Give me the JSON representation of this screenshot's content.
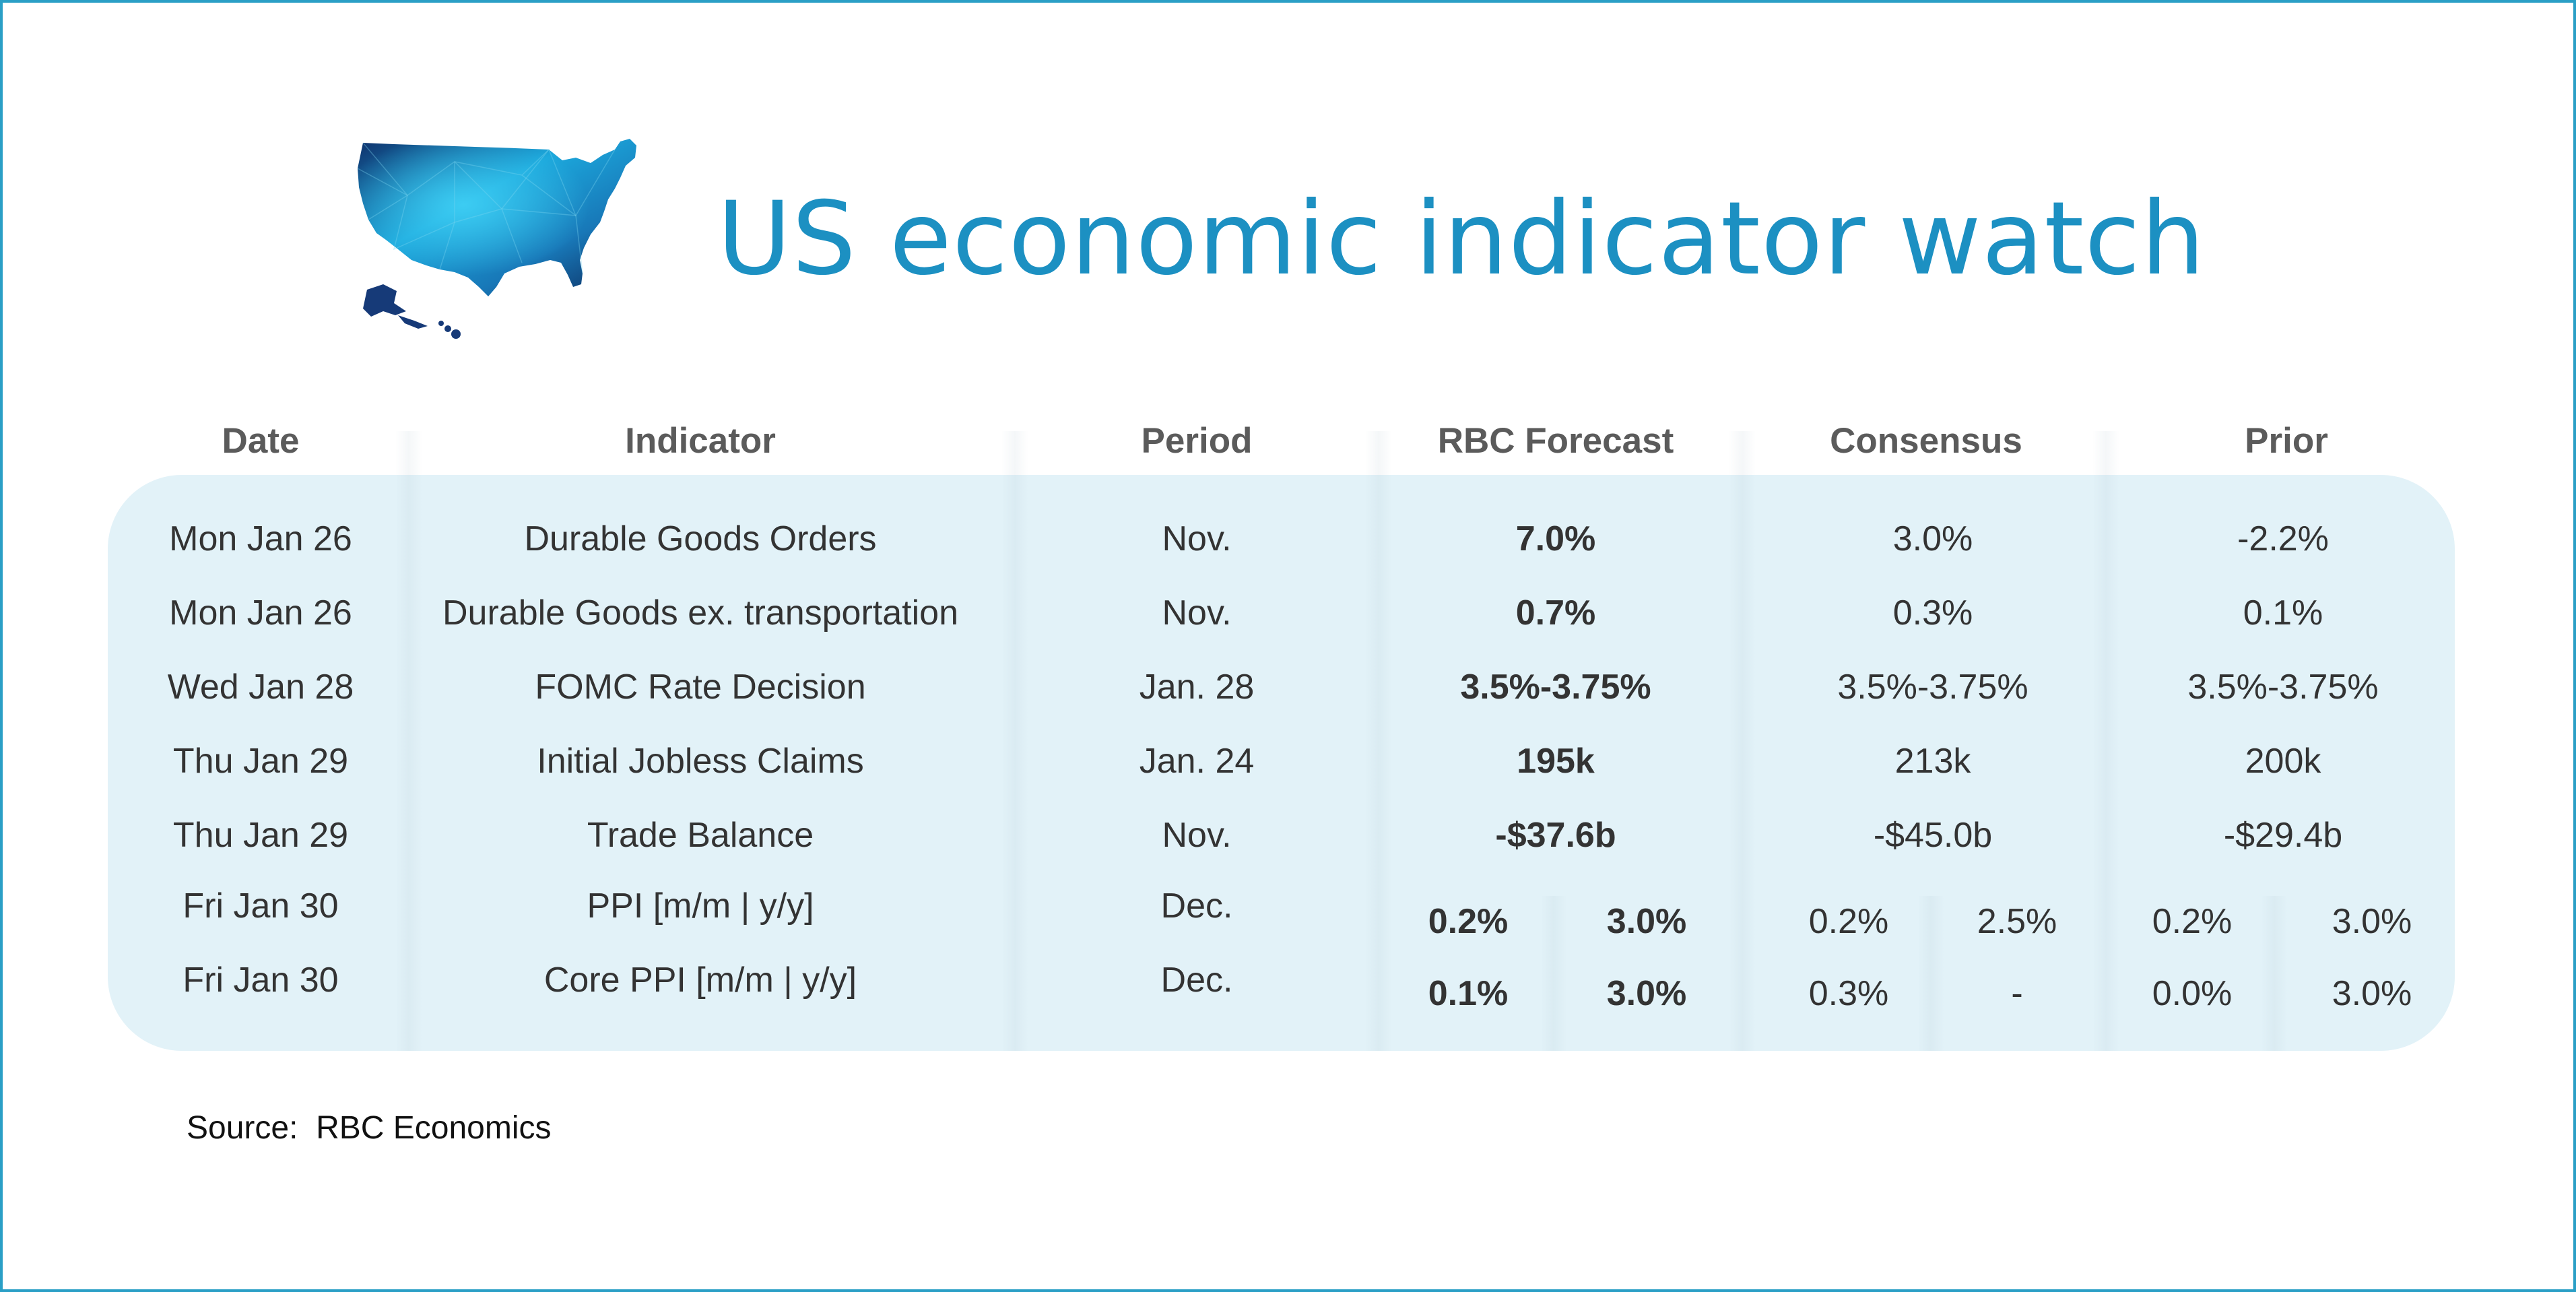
{
  "title": "US economic indicator watch",
  "colors": {
    "accent": "#1c90c2",
    "band": "#e2f2f8",
    "frame": "#2a9fc6",
    "header_text": "#5b5b5b"
  },
  "headers": {
    "date": "Date",
    "indicator": "Indicator",
    "period": "Period",
    "rbc_forecast": "RBC Forecast",
    "consensus": "Consensus",
    "prior": "Prior"
  },
  "rows": [
    {
      "date": "Mon Jan 26",
      "indicator": "Durable Goods Orders",
      "period": "Nov.",
      "rbc": "7.0%",
      "consensus": "3.0%",
      "prior": "-2.2%"
    },
    {
      "date": "Mon Jan 26",
      "indicator": "Durable Goods ex. transportation",
      "period": "Nov.",
      "rbc": "0.7%",
      "consensus": "0.3%",
      "prior": "0.1%"
    },
    {
      "date": "Wed Jan 28",
      "indicator": "FOMC Rate Decision",
      "period": "Jan. 28",
      "rbc": "3.5%-3.75%",
      "consensus": "3.5%-3.75%",
      "prior": "3.5%-3.75%"
    },
    {
      "date": "Thu Jan 29",
      "indicator": "Initial Jobless Claims",
      "period": "Jan. 24",
      "rbc": "195k",
      "consensus": "213k",
      "prior": "200k"
    },
    {
      "date": "Thu Jan 29",
      "indicator": "Trade Balance",
      "period": "Nov.",
      "rbc": "-$37.6b",
      "consensus": "-$45.0b",
      "prior": "-$29.4b"
    }
  ],
  "split_rows": [
    {
      "date": "Fri Jan 30",
      "indicator": "PPI [m/m | y/y]",
      "period": "Dec.",
      "rbc_mm": "0.2%",
      "rbc_yy": "3.0%",
      "cons_mm": "0.2%",
      "cons_yy": "2.5%",
      "prior_mm": "0.2%",
      "prior_yy": "3.0%"
    },
    {
      "date": "Fri Jan 30",
      "indicator": "Core PPI [m/m | y/y]",
      "period": "Dec.",
      "rbc_mm": "0.1%",
      "rbc_yy": "3.0%",
      "cons_mm": "0.3%",
      "cons_yy": "-",
      "prior_mm": "0.0%",
      "prior_yy": "3.0%"
    }
  ],
  "source": "Source:  RBC Economics",
  "icons": {
    "map": "us-map-icon"
  }
}
